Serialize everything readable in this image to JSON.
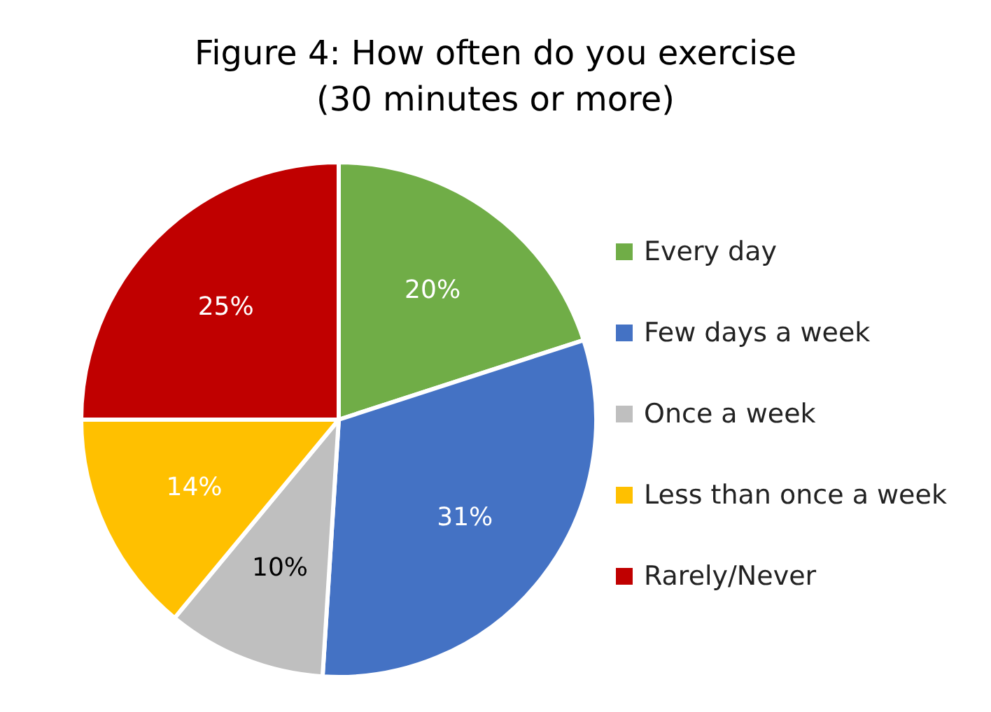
{
  "chart_data": {
    "type": "pie",
    "title": "Figure 4: How often do you exercise\n(30 minutes or more)",
    "categories": [
      "Every day",
      "Few days a week",
      "Once a week",
      "Less than once a week",
      "Rarely/Never"
    ],
    "values": [
      20,
      31,
      10,
      14,
      25
    ],
    "colors": [
      "#70ad47",
      "#4472c4",
      "#bfbfbf",
      "#ffc000",
      "#c00000"
    ],
    "value_labels": [
      "20%",
      "31%",
      "10%",
      "14%",
      "25%"
    ],
    "legend": "right"
  }
}
